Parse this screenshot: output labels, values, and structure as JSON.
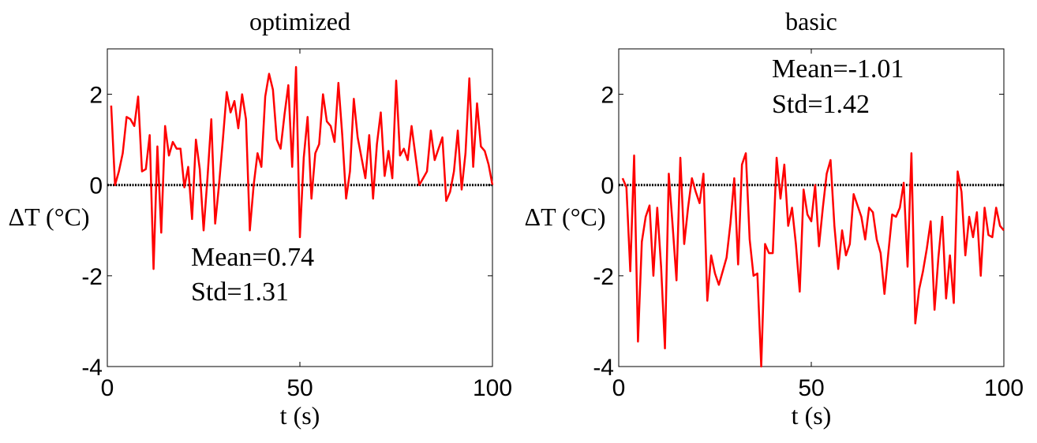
{
  "chart_data": [
    {
      "type": "line",
      "title": "optimized",
      "xlabel": "t (s)",
      "ylabel": "ΔT (°C)",
      "annotations": [
        "Mean=0.74",
        "Std=1.31"
      ],
      "xlim": [
        0,
        100
      ],
      "xticks": [
        0,
        50,
        100
      ],
      "ylim": [
        -4,
        3
      ],
      "yticks": [
        -4,
        -2,
        0,
        2
      ],
      "reference_line": 0,
      "reference_color": "#000000",
      "x": [
        1,
        2,
        3,
        4,
        5,
        6,
        7,
        8,
        9,
        10,
        11,
        12,
        13,
        14,
        15,
        16,
        17,
        18,
        19,
        20,
        21,
        22,
        23,
        24,
        25,
        26,
        27,
        28,
        29,
        30,
        31,
        32,
        33,
        34,
        35,
        36,
        37,
        38,
        39,
        40,
        41,
        42,
        43,
        44,
        45,
        46,
        47,
        48,
        49,
        50,
        51,
        52,
        53,
        54,
        55,
        56,
        57,
        58,
        59,
        60,
        61,
        62,
        63,
        64,
        65,
        66,
        67,
        68,
        69,
        70,
        71,
        72,
        73,
        74,
        75,
        76,
        77,
        78,
        79,
        80,
        81,
        82,
        83,
        84,
        85,
        86,
        87,
        88,
        89,
        90,
        91,
        92,
        93,
        94,
        95,
        96,
        97,
        98,
        99,
        100
      ],
      "series": [
        {
          "color": "#ff0000",
          "values": [
            1.75,
            0.0,
            0.3,
            0.7,
            1.5,
            1.45,
            1.3,
            1.95,
            0.3,
            0.35,
            1.1,
            -1.85,
            0.85,
            -1.05,
            1.3,
            0.65,
            0.95,
            0.8,
            0.8,
            -0.05,
            0.4,
            -0.75,
            1.0,
            0.35,
            -1.0,
            0.15,
            1.45,
            -0.85,
            0.0,
            1.0,
            2.05,
            1.6,
            1.85,
            1.25,
            2.0,
            1.45,
            -1.0,
            0.0,
            0.7,
            0.4,
            1.95,
            2.45,
            2.1,
            1.0,
            0.8,
            1.55,
            2.2,
            0.4,
            2.6,
            -1.15,
            0.6,
            1.5,
            -0.3,
            0.7,
            0.9,
            2.0,
            1.4,
            1.3,
            0.95,
            2.25,
            1.1,
            -0.3,
            0.3,
            1.9,
            1.05,
            0.6,
            0.15,
            1.1,
            -0.3,
            0.9,
            1.6,
            0.2,
            0.75,
            0.15,
            2.3,
            0.65,
            0.8,
            0.55,
            1.3,
            0.65,
            0.0,
            0.15,
            0.3,
            1.2,
            0.55,
            0.8,
            1.05,
            -0.35,
            -0.15,
            0.3,
            1.2,
            -0.1,
            0.7,
            2.35,
            0.4,
            1.8,
            0.85,
            0.75,
            0.45,
            0.0
          ]
        }
      ]
    },
    {
      "type": "line",
      "title": "basic",
      "xlabel": "t (s)",
      "ylabel": "ΔT (°C)",
      "annotations": [
        "Mean=-1.01",
        "Std=1.42"
      ],
      "xlim": [
        0,
        100
      ],
      "xticks": [
        0,
        50,
        100
      ],
      "ylim": [
        -4,
        3
      ],
      "yticks": [
        -4,
        -2,
        0,
        2
      ],
      "reference_line": 0,
      "reference_color": "#000000",
      "x": [
        1,
        2,
        3,
        4,
        5,
        6,
        7,
        8,
        9,
        10,
        11,
        12,
        13,
        14,
        15,
        16,
        17,
        18,
        19,
        20,
        21,
        22,
        23,
        24,
        25,
        26,
        27,
        28,
        29,
        30,
        31,
        32,
        33,
        34,
        35,
        36,
        37,
        38,
        39,
        40,
        41,
        42,
        43,
        44,
        45,
        46,
        47,
        48,
        49,
        50,
        51,
        52,
        53,
        54,
        55,
        56,
        57,
        58,
        59,
        60,
        61,
        62,
        63,
        64,
        65,
        66,
        67,
        68,
        69,
        70,
        71,
        72,
        73,
        74,
        75,
        76,
        77,
        78,
        79,
        80,
        81,
        82,
        83,
        84,
        85,
        86,
        87,
        88,
        89,
        90,
        91,
        92,
        93,
        94,
        95,
        96,
        97,
        98,
        99,
        100
      ],
      "series": [
        {
          "color": "#ff0000",
          "values": [
            0.15,
            -0.05,
            -1.9,
            0.65,
            -3.45,
            -1.25,
            -0.7,
            -0.45,
            -2.0,
            -0.5,
            -1.8,
            -3.6,
            0.25,
            -0.9,
            -2.1,
            0.6,
            -1.3,
            -0.5,
            0.15,
            -0.15,
            -0.4,
            0.25,
            -2.55,
            -1.55,
            -1.95,
            -2.2,
            -1.9,
            -1.6,
            -0.85,
            0.15,
            -1.75,
            0.45,
            0.7,
            -1.2,
            -2.0,
            -1.95,
            -4.0,
            -1.3,
            -1.5,
            -1.5,
            0.6,
            -0.3,
            0.45,
            -0.9,
            -0.5,
            -1.3,
            -2.35,
            -0.1,
            -0.65,
            -0.8,
            0.0,
            -1.35,
            -0.5,
            0.25,
            0.55,
            -0.9,
            -1.85,
            -1.0,
            -1.55,
            -1.3,
            -0.2,
            -0.45,
            -0.7,
            -1.2,
            -0.5,
            -0.6,
            -1.2,
            -1.5,
            -2.4,
            -1.5,
            -0.65,
            -0.7,
            -0.5,
            0.05,
            -1.8,
            0.7,
            -3.05,
            -2.3,
            -1.9,
            -1.4,
            -0.8,
            -2.75,
            -1.6,
            -0.7,
            -2.5,
            -1.55,
            -2.6,
            0.3,
            -0.15,
            -1.55,
            -0.7,
            -1.15,
            -0.6,
            -2.0,
            -0.5,
            -1.1,
            -1.15,
            -0.5,
            -0.9,
            -1.0
          ]
        }
      ]
    }
  ]
}
